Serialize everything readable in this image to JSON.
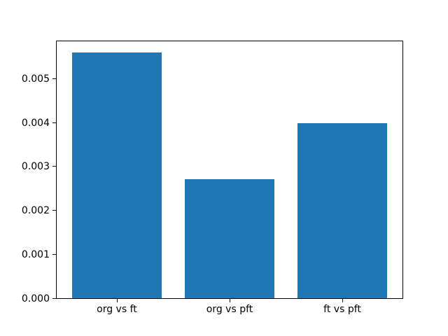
{
  "chart_data": {
    "type": "bar",
    "categories": [
      "org vs ft",
      "org vs pft",
      "ft vs pft"
    ],
    "values": [
      0.00559,
      0.00271,
      0.00398
    ],
    "ylim": [
      0,
      0.00587
    ],
    "yticks": [
      0,
      0.001,
      0.002,
      0.003,
      0.004,
      0.005
    ],
    "ytick_labels": [
      "0.000",
      "0.001",
      "0.002",
      "0.003",
      "0.004",
      "0.005"
    ],
    "bar_color": "#1f77b4",
    "bar_width_fraction": 0.8,
    "x_margin_fraction": 0.05,
    "grid": false,
    "legend": false
  },
  "figure": {
    "background": "#ffffff",
    "spine_color": "#000000",
    "tick_color": "#000000",
    "label_color": "#000000"
  }
}
